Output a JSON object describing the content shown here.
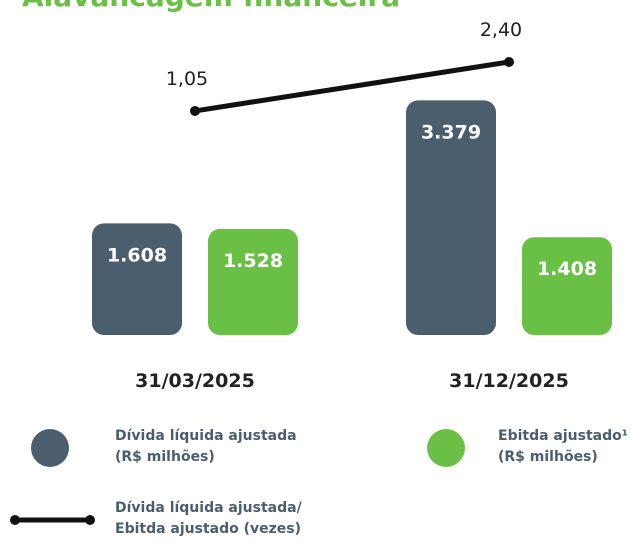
{
  "chart_data": {
    "type": "bar",
    "title": "Alavancagem financeira",
    "categories": [
      "31/03/2025",
      "31/12/2025"
    ],
    "ylim": [
      0,
      3500
    ],
    "y2lim": [
      0,
      4
    ],
    "series": [
      {
        "name": "Dívida líquida ajustada (R$ milhões)",
        "color": "#4a5e6e",
        "values": [
          1608,
          3379
        ],
        "value_labels": [
          "1.608",
          "3.379"
        ]
      },
      {
        "name": "Ebitda ajustado¹ (R$ milhões)",
        "color": "#6abf45",
        "values": [
          1528,
          1408
        ],
        "value_labels": [
          "1.528",
          "1.408"
        ]
      },
      {
        "name": "Dívida líquida ajustada/ Ebitda ajustado (vezes)",
        "type": "line",
        "axis": "y2",
        "color": "#111111",
        "values": [
          1.05,
          2.4
        ],
        "value_labels": [
          "1,05",
          "2,40"
        ]
      }
    ]
  }
}
